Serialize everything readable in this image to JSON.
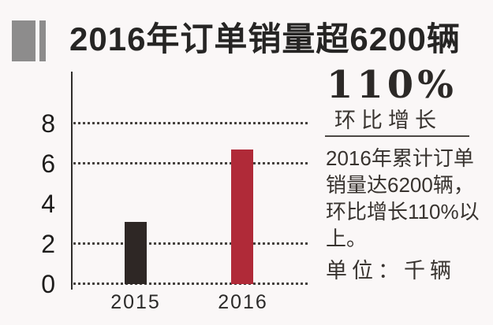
{
  "header": {
    "title": "2016年订单销量超6200辆"
  },
  "panel": {
    "growth_value": "110%",
    "growth_label": "环比增长",
    "note_lines": [
      "2016年累计订单",
      "销量达6200辆，",
      "环比增长110%以",
      "上。"
    ],
    "unit_label": "单位：千辆"
  },
  "chart_data": {
    "type": "bar",
    "title": "2016年订单销量超6200辆",
    "categories": [
      "2015",
      "2016"
    ],
    "values": [
      3.1,
      6.7
    ],
    "unit": "千辆",
    "ylim": [
      0,
      8
    ],
    "yticks": [
      8,
      6,
      4,
      2,
      0
    ],
    "gridline_values": [
      8,
      6,
      2,
      0
    ],
    "grid_style": "dotted",
    "bar_colors": [
      "#2e2725",
      "#b02a38"
    ],
    "legend": "none",
    "annotation": "环比增长110%"
  },
  "colors": {
    "background": "#faf7f7",
    "bar_2015": "#2e2725",
    "bar_2016": "#b02a38",
    "icon_gray": "#8d8c8c",
    "text_dark": "#262524"
  }
}
